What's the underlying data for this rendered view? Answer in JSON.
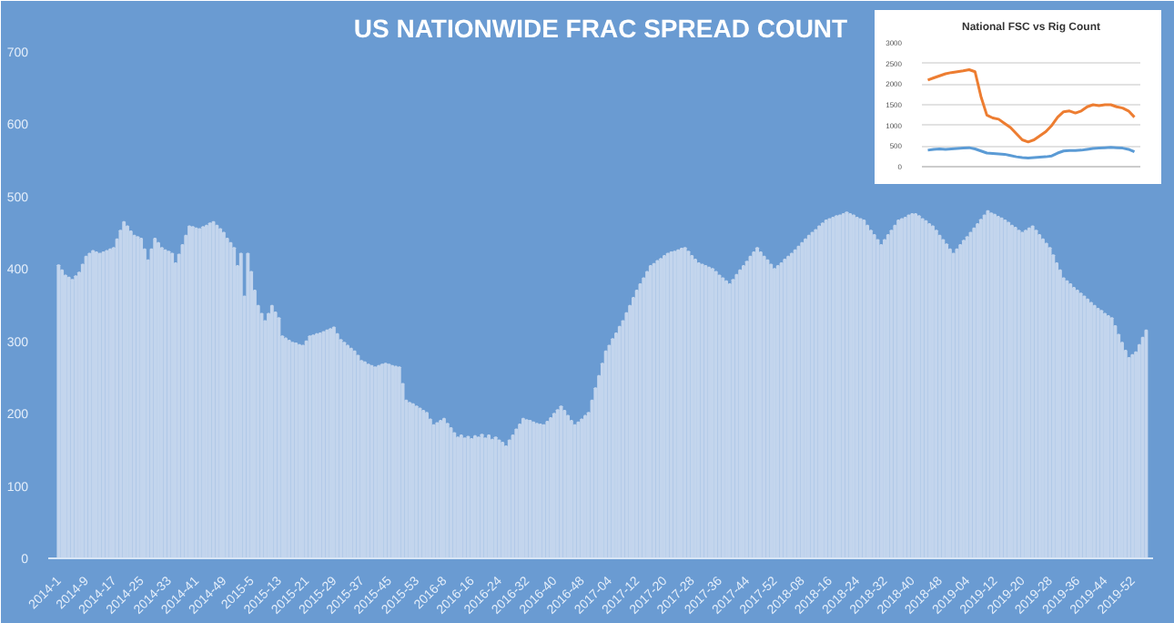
{
  "chart_data": [
    {
      "type": "bar",
      "title": "US NATIONWIDE FRAC SPREAD COUNT",
      "categories": [
        "2014-1",
        null,
        null,
        null,
        null,
        null,
        null,
        null,
        "2014-9",
        null,
        null,
        null,
        null,
        null,
        null,
        null,
        "2014-17",
        null,
        null,
        null,
        null,
        null,
        null,
        null,
        "2014-25",
        null,
        null,
        null,
        null,
        null,
        null,
        null,
        "2014-33",
        null,
        null,
        null,
        null,
        null,
        null,
        null,
        "2014-41",
        null,
        null,
        null,
        null,
        null,
        null,
        null,
        "2014-49",
        null,
        null,
        null,
        null,
        null,
        null,
        null,
        "2015-5",
        null,
        null,
        null,
        null,
        null,
        null,
        null,
        "2015-13",
        null,
        null,
        null,
        null,
        null,
        null,
        null,
        "2015-21",
        null,
        null,
        null,
        null,
        null,
        null,
        null,
        "2015-29",
        null,
        null,
        null,
        null,
        null,
        null,
        null,
        "2015-37",
        null,
        null,
        null,
        null,
        null,
        null,
        null,
        "2015-45",
        null,
        null,
        null,
        null,
        null,
        null,
        null,
        "2015-53",
        null,
        null,
        null,
        null,
        null,
        null,
        null,
        "2016-8",
        null,
        null,
        null,
        null,
        null,
        null,
        null,
        "2016-16",
        null,
        null,
        null,
        null,
        null,
        null,
        null,
        "2016-24",
        null,
        null,
        null,
        null,
        null,
        null,
        null,
        "2016-32",
        null,
        null,
        null,
        null,
        null,
        null,
        null,
        "2016-40",
        null,
        null,
        null,
        null,
        null,
        null,
        null,
        "2016-48",
        null,
        null,
        null,
        null,
        null,
        null,
        null,
        "2017-04",
        null,
        null,
        null,
        null,
        null,
        null,
        null,
        "2017-12",
        null,
        null,
        null,
        null,
        null,
        null,
        null,
        "2017-20",
        null,
        null,
        null,
        null,
        null,
        null,
        null,
        "2017-28",
        null,
        null,
        null,
        null,
        null,
        null,
        null,
        "2017-36",
        null,
        null,
        null,
        null,
        null,
        null,
        null,
        "2017-44",
        null,
        null,
        null,
        null,
        null,
        null,
        null,
        "2017-52",
        null,
        null,
        null,
        null,
        null,
        null,
        null,
        "2018-08",
        null,
        null,
        null,
        null,
        null,
        null,
        null,
        "2018-16",
        null,
        null,
        null,
        null,
        null,
        null,
        null,
        "2018-24",
        null,
        null,
        null,
        null,
        null,
        null,
        null,
        "2018-32",
        null,
        null,
        null,
        null,
        null,
        null,
        null,
        "2018-40",
        null,
        null,
        null,
        null,
        null,
        null,
        null,
        "2018-48",
        null,
        null,
        null,
        null,
        null,
        null,
        null,
        "2019-04",
        null,
        null,
        null,
        null,
        null,
        null,
        null,
        "2019-12",
        null,
        null,
        null,
        null,
        null,
        null,
        null,
        "2019-20",
        null,
        null,
        null,
        null,
        null,
        null,
        null,
        "2019-28",
        null,
        null,
        null,
        null,
        null,
        null,
        null,
        "2019-36",
        null,
        null,
        null,
        null,
        null,
        null,
        null,
        "2019-44",
        null,
        null,
        null,
        null,
        null,
        null,
        null,
        "2019-52",
        null,
        null,
        null,
        null
      ],
      "series": [
        {
          "color": "#c3d5ed",
          "values": [
            405,
            398,
            391,
            388,
            385,
            390,
            395,
            406,
            417,
            421,
            425,
            423,
            421,
            423,
            425,
            427,
            429,
            441,
            453,
            465,
            459,
            452,
            446,
            444,
            442,
            427,
            412,
            427,
            442,
            436,
            429,
            426,
            424,
            421,
            408,
            420,
            433,
            446,
            459,
            458,
            456,
            455,
            458,
            460,
            463,
            465,
            460,
            455,
            450,
            442,
            436,
            429,
            404,
            421,
            362,
            421,
            396,
            370,
            349,
            338,
            328,
            338,
            349,
            340,
            332,
            307,
            304,
            301,
            298,
            297,
            295,
            294,
            300,
            307,
            308,
            310,
            311,
            313,
            315,
            317,
            319,
            310,
            302,
            298,
            294,
            290,
            286,
            280,
            273,
            271,
            268,
            266,
            264,
            266,
            268,
            269,
            268,
            266,
            265,
            264,
            241,
            218,
            215,
            213,
            210,
            207,
            204,
            201,
            192,
            184,
            187,
            190,
            193,
            186,
            180,
            173,
            167,
            170,
            166,
            168,
            165,
            169,
            167,
            171,
            166,
            170,
            164,
            167,
            163,
            160,
            155,
            163,
            170,
            178,
            185,
            193,
            191,
            190,
            188,
            186,
            185,
            184,
            189,
            194,
            200,
            205,
            210,
            204,
            197,
            190,
            184,
            188,
            192,
            197,
            201,
            218,
            235,
            252,
            269,
            286,
            294,
            303,
            311,
            320,
            328,
            339,
            349,
            360,
            370,
            379,
            387,
            396,
            404,
            407,
            411,
            414,
            418,
            421,
            423,
            424,
            426,
            428,
            429,
            424,
            418,
            413,
            408,
            406,
            404,
            402,
            400,
            396,
            391,
            387,
            383,
            379,
            385,
            392,
            398,
            404,
            410,
            417,
            423,
            429,
            423,
            417,
            412,
            406,
            400,
            404,
            408,
            413,
            417,
            421,
            426,
            431,
            436,
            441,
            446,
            450,
            454,
            459,
            463,
            467,
            469,
            471,
            473,
            474,
            476,
            478,
            476,
            474,
            471,
            469,
            467,
            460,
            453,
            447,
            440,
            433,
            440,
            447,
            453,
            460,
            467,
            469,
            471,
            474,
            476,
            476,
            473,
            469,
            466,
            462,
            459,
            453,
            446,
            440,
            434,
            427,
            421,
            427,
            433,
            439,
            444,
            450,
            456,
            462,
            468,
            474,
            480,
            477,
            475,
            472,
            470,
            467,
            464,
            460,
            457,
            453,
            450,
            453,
            456,
            459,
            453,
            447,
            441,
            435,
            429,
            419,
            408,
            398,
            387,
            383,
            379,
            374,
            370,
            366,
            362,
            358,
            353,
            349,
            345,
            342,
            338,
            335,
            332,
            321,
            309,
            298,
            287,
            277,
            281,
            285,
            295,
            305,
            315
          ]
        }
      ],
      "ylim": [
        0,
        700
      ],
      "yticks": [
        0,
        100,
        200,
        300,
        400,
        500,
        600,
        700
      ]
    },
    {
      "type": "line",
      "title": "National FSC vs Rig Count",
      "categories": [
        null,
        null,
        null,
        null,
        null,
        null,
        null,
        null,
        null,
        null,
        null,
        null,
        null,
        null,
        null,
        null,
        null,
        null,
        null,
        null,
        null,
        null,
        null,
        null,
        null,
        null,
        null,
        null,
        null,
        null,
        null,
        null,
        null,
        null,
        null,
        null
      ],
      "series": [
        {
          "color": "#ed7d31",
          "values": [
            2100,
            2150,
            2200,
            2250,
            2280,
            2300,
            2320,
            2350,
            2300,
            1700,
            1250,
            1180,
            1150,
            1050,
            950,
            800,
            650,
            600,
            650,
            750,
            850,
            1000,
            1200,
            1330,
            1350,
            1300,
            1350,
            1450,
            1500,
            1480,
            1500,
            1500,
            1450,
            1420,
            1350,
            1200
          ]
        },
        {
          "color": "#5b9bd5",
          "values": [
            400,
            420,
            430,
            420,
            430,
            440,
            450,
            460,
            430,
            380,
            330,
            320,
            310,
            300,
            270,
            240,
            220,
            210,
            220,
            230,
            240,
            260,
            330,
            380,
            390,
            390,
            400,
            420,
            440,
            450,
            460,
            470,
            460,
            450,
            420,
            360
          ]
        }
      ],
      "ylim": [
        0,
        3000
      ],
      "yticks": [
        0,
        500,
        1000,
        1500,
        2000,
        2500,
        3000
      ],
      "grid": "y"
    }
  ]
}
